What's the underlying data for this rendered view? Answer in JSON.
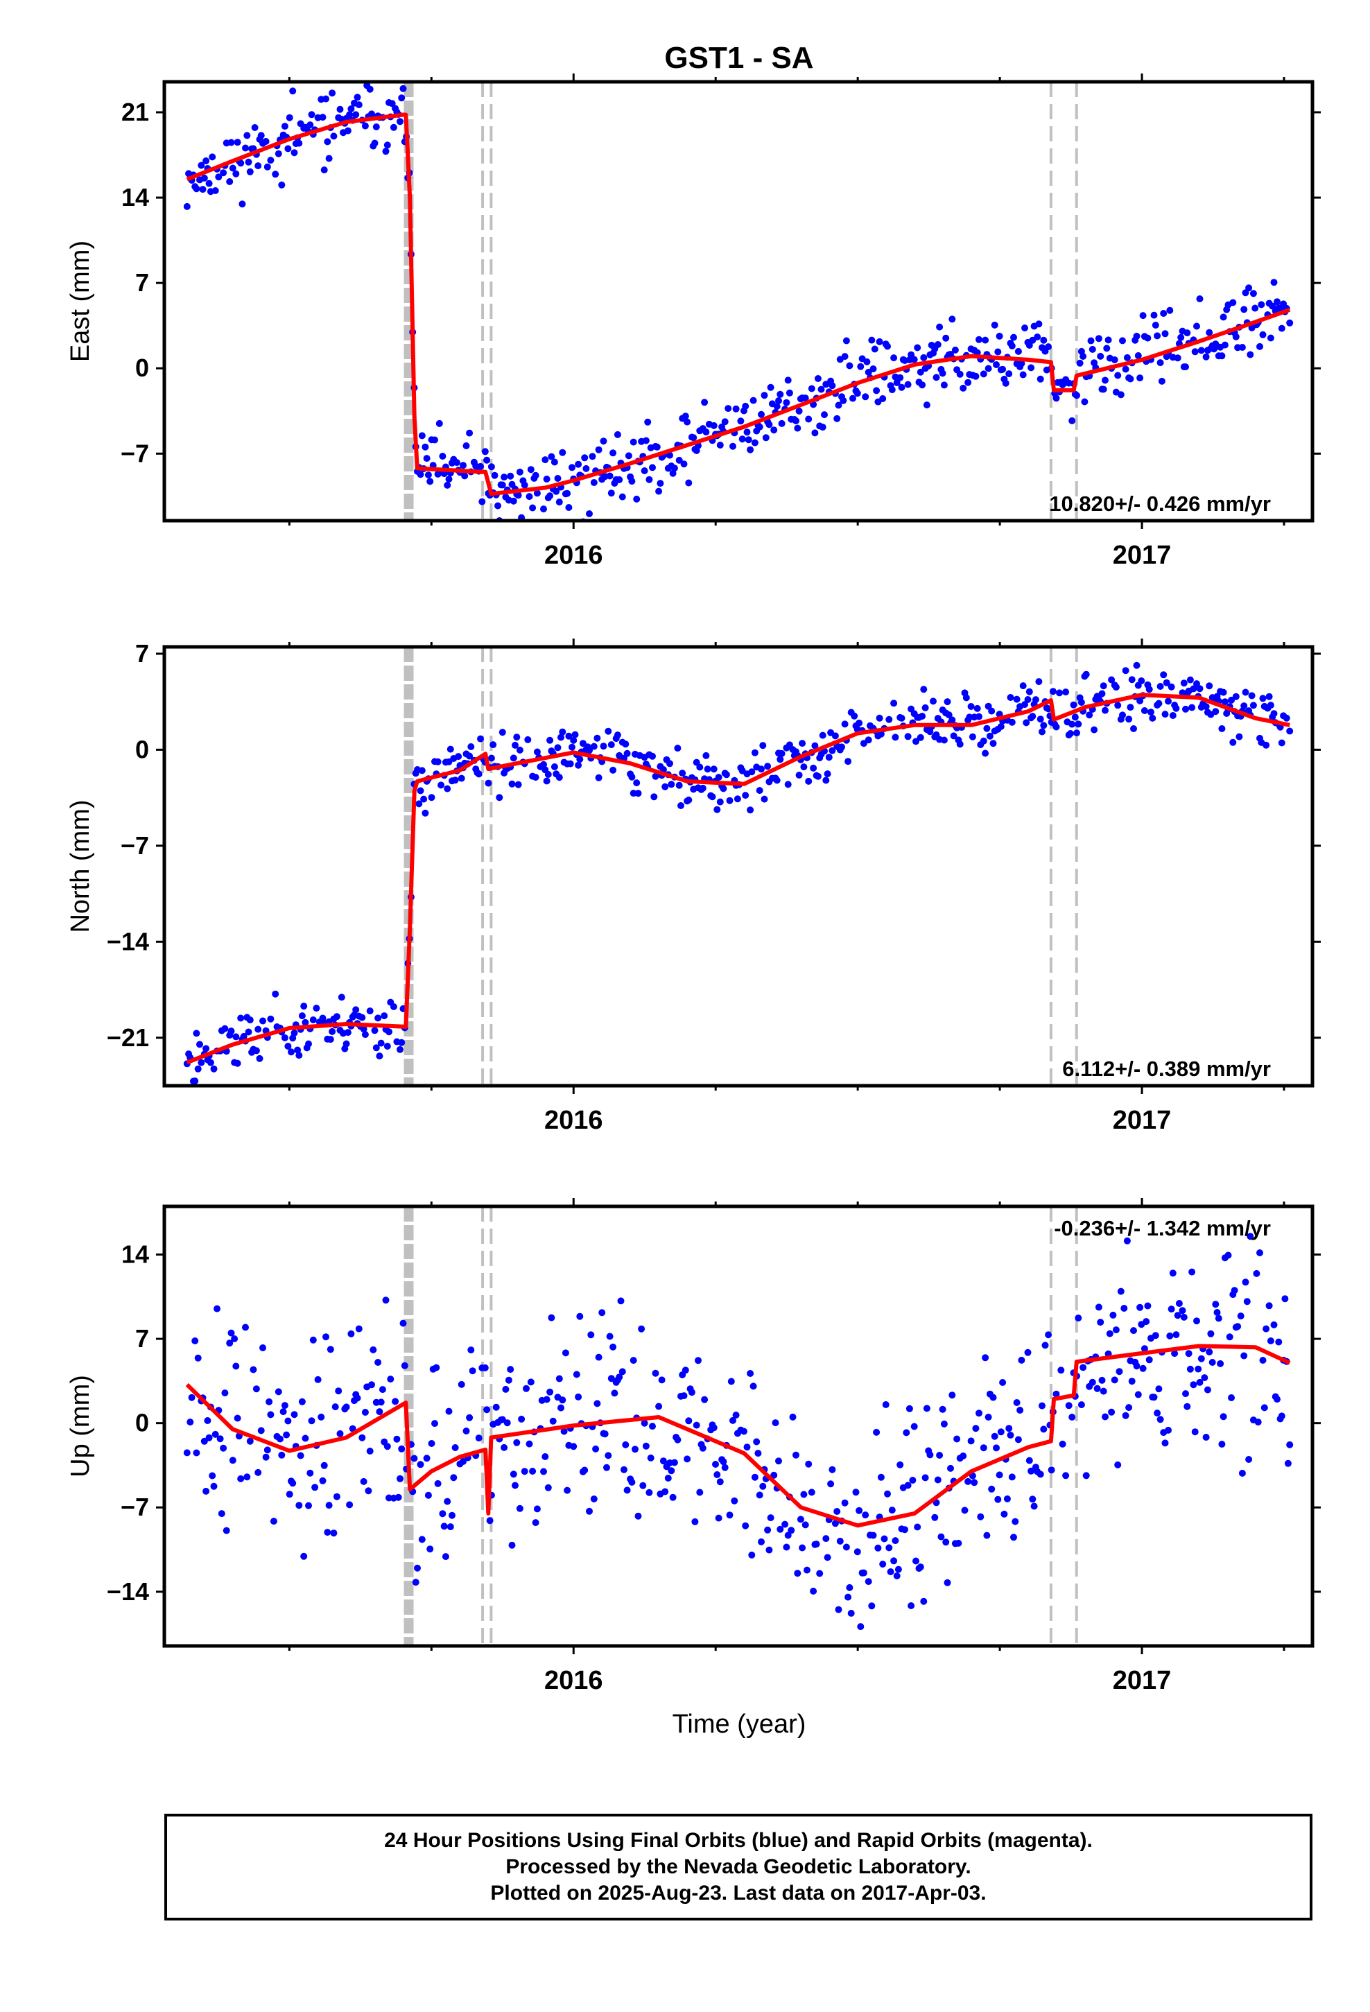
{
  "title": "GST1 - SA",
  "xlabel": "Time (year)",
  "colors": {
    "fit": "#ff0000",
    "final": "#0000ff",
    "rapid": "#ff00ff",
    "offsets": "#c0c0c0"
  },
  "footer": {
    "line1": "24 Hour Positions Using Final Orbits (blue) and Rapid Orbits (magenta).",
    "line2": "Processed by the Nevada Geodetic Laboratory.",
    "line3": "Plotted on 2025-Aug-23. Last data on 2017-Apr-03."
  },
  "chart_data": [
    {
      "type": "scatter",
      "ylabel": "East (mm)",
      "xlim": [
        2015.28,
        2017.3
      ],
      "ylim": [
        -12.5,
        23.5
      ],
      "yticks": [
        21,
        14,
        7,
        0,
        -7
      ],
      "xticks": [
        "2016",
        "2017"
      ],
      "rate": "10.820+/- 0.426 mm/yr",
      "offsets_thick": [
        2015.71
      ],
      "offsets": [
        2015.84,
        2015.855,
        2016.84,
        2016.885
      ],
      "fit": [
        [
          2015.32,
          15.5
        ],
        [
          2015.4,
          17
        ],
        [
          2015.5,
          18.8
        ],
        [
          2015.6,
          20.2
        ],
        [
          2015.7,
          20.8
        ],
        [
          2015.705,
          20.8
        ],
        [
          2015.712,
          14
        ],
        [
          2015.72,
          -4
        ],
        [
          2015.725,
          -8.2
        ],
        [
          2015.84,
          -8.5
        ],
        [
          2015.845,
          -8.5
        ],
        [
          2015.855,
          -10.3
        ],
        [
          2015.95,
          -9.8
        ],
        [
          2016.0,
          -9.2
        ],
        [
          2016.1,
          -7.8
        ],
        [
          2016.2,
          -6.3
        ],
        [
          2016.3,
          -4.8
        ],
        [
          2016.4,
          -3
        ],
        [
          2016.5,
          -1.2
        ],
        [
          2016.6,
          0.3
        ],
        [
          2016.7,
          1.0
        ],
        [
          2016.8,
          0.7
        ],
        [
          2016.84,
          0.5
        ],
        [
          2016.845,
          -1.8
        ],
        [
          2016.88,
          -1.8
        ],
        [
          2016.885,
          -0.6
        ],
        [
          2017.0,
          0.7
        ],
        [
          2017.1,
          2.2
        ],
        [
          2017.2,
          3.8
        ],
        [
          2017.26,
          4.8
        ]
      ],
      "scatter_noise": 1.4,
      "scatter_seed": 11
    },
    {
      "type": "scatter",
      "ylabel": "North (mm)",
      "xlim": [
        2015.28,
        2017.3
      ],
      "ylim": [
        -24.5,
        7.5
      ],
      "yticks": [
        7,
        0,
        -7,
        -14,
        -21
      ],
      "xticks": [
        "2016",
        "2017"
      ],
      "rate": "6.112+/- 0.389 mm/yr",
      "offsets_thick": [
        2015.71
      ],
      "offsets": [
        2015.84,
        2015.855,
        2016.84,
        2016.885
      ],
      "fit": [
        [
          2015.32,
          -22.8
        ],
        [
          2015.4,
          -21.5
        ],
        [
          2015.5,
          -20.3
        ],
        [
          2015.6,
          -20
        ],
        [
          2015.705,
          -20.2
        ],
        [
          2015.712,
          -13
        ],
        [
          2015.72,
          -3
        ],
        [
          2015.725,
          -2.3
        ],
        [
          2015.8,
          -1.5
        ],
        [
          2015.845,
          -0.3
        ],
        [
          2015.85,
          -1.4
        ],
        [
          2015.9,
          -1.0
        ],
        [
          2016.0,
          -0.2
        ],
        [
          2016.1,
          -1
        ],
        [
          2016.2,
          -2.3
        ],
        [
          2016.3,
          -2.5
        ],
        [
          2016.4,
          -0.5
        ],
        [
          2016.5,
          1.2
        ],
        [
          2016.6,
          1.8
        ],
        [
          2016.7,
          1.8
        ],
        [
          2016.8,
          2.8
        ],
        [
          2016.84,
          3.6
        ],
        [
          2016.845,
          2.2
        ],
        [
          2016.9,
          3.1
        ],
        [
          2017.0,
          4.0
        ],
        [
          2017.1,
          3.8
        ],
        [
          2017.2,
          2.3
        ],
        [
          2017.26,
          1.8
        ]
      ],
      "scatter_noise": 1.0,
      "scatter_seed": 23
    },
    {
      "type": "scatter",
      "ylabel": "Up (mm)",
      "xlim": [
        2015.28,
        2017.3
      ],
      "ylim": [
        -18.5,
        18
      ],
      "yticks": [
        14,
        7,
        0,
        -7,
        -14
      ],
      "xticks": [
        "2016",
        "2017"
      ],
      "rate": "-0.236+/- 1.342 mm/yr",
      "offsets_thick": [
        2015.71
      ],
      "offsets": [
        2015.84,
        2015.855,
        2016.84,
        2016.885
      ],
      "fit": [
        [
          2015.32,
          3.2
        ],
        [
          2015.4,
          -0.5
        ],
        [
          2015.5,
          -2.3
        ],
        [
          2015.6,
          -1.2
        ],
        [
          2015.705,
          1.7
        ],
        [
          2015.712,
          -5.5
        ],
        [
          2015.75,
          -4.0
        ],
        [
          2015.8,
          -2.8
        ],
        [
          2015.845,
          -2.2
        ],
        [
          2015.85,
          -7.5
        ],
        [
          2015.855,
          -1.2
        ],
        [
          2016.0,
          -0.2
        ],
        [
          2016.15,
          0.5
        ],
        [
          2016.3,
          -2.5
        ],
        [
          2016.4,
          -7.0
        ],
        [
          2016.5,
          -8.5
        ],
        [
          2016.6,
          -7.5
        ],
        [
          2016.7,
          -4.0
        ],
        [
          2016.8,
          -2.0
        ],
        [
          2016.84,
          -1.5
        ],
        [
          2016.845,
          2.0
        ],
        [
          2016.88,
          2.3
        ],
        [
          2016.885,
          5.1
        ],
        [
          2017.0,
          5.8
        ],
        [
          2017.1,
          6.4
        ],
        [
          2017.2,
          6.3
        ],
        [
          2017.26,
          5.0
        ]
      ],
      "scatter_noise": 4.2,
      "scatter_seed": 37
    }
  ]
}
